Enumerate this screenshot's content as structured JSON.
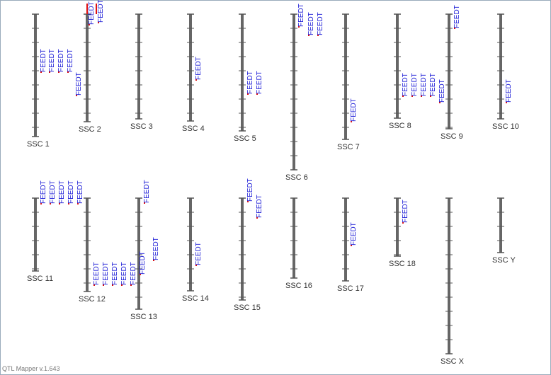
{
  "chromosomes": [
    {
      "label": "SSC 1",
      "qtls": [
        "FEEDT",
        "FEEDT",
        "FEEDT",
        "FEEDT",
        "FEEDT"
      ]
    },
    {
      "label": "SSC 2",
      "qtls": [
        "FEEDT",
        "FEEDT"
      ]
    },
    {
      "label": "SSC 3",
      "qtls": []
    },
    {
      "label": "SSC 4",
      "qtls": [
        "FEEDT"
      ]
    },
    {
      "label": "SSC 5",
      "qtls": [
        "FEEDT",
        "FEEDT"
      ]
    },
    {
      "label": "SSC 6",
      "qtls": [
        "FEEDT",
        "FEEDT",
        "FEEDT"
      ]
    },
    {
      "label": "SSC 7",
      "qtls": [
        "FEEDT"
      ]
    },
    {
      "label": "SSC 8",
      "qtls": [
        "FEEDT",
        "FEEDT",
        "FEEDT",
        "FEEDT",
        "FEEDT"
      ]
    },
    {
      "label": "SSC 9",
      "qtls": [
        "FEEDT"
      ]
    },
    {
      "label": "SSC 10",
      "qtls": [
        "FEEDT"
      ]
    },
    {
      "label": "SSC 11",
      "qtls": [
        "FEEDT",
        "FEEDT",
        "FEEDT",
        "FEEDT",
        "FEEDT"
      ]
    },
    {
      "label": "SSC 12",
      "qtls": [
        "FEEDT",
        "FEEDT",
        "FEEDT",
        "FEEDT",
        "FEEDT"
      ]
    },
    {
      "label": "SSC 13",
      "qtls": [
        "FEEDT",
        "FEEDT",
        "FEEDT"
      ]
    },
    {
      "label": "SSC 14",
      "qtls": [
        "FEEDT"
      ]
    },
    {
      "label": "SSC 15",
      "qtls": [
        "FEEDT",
        "FEEDT"
      ]
    },
    {
      "label": "SSC 16",
      "qtls": []
    },
    {
      "label": "SSC 17",
      "qtls": [
        "FEEDT"
      ]
    },
    {
      "label": "SSC 18",
      "qtls": [
        "FEEDT"
      ]
    },
    {
      "label": "SSC X",
      "qtls": []
    },
    {
      "label": "SSC Y",
      "qtls": []
    }
  ],
  "footer": "QTL Mapper v.1.643"
}
